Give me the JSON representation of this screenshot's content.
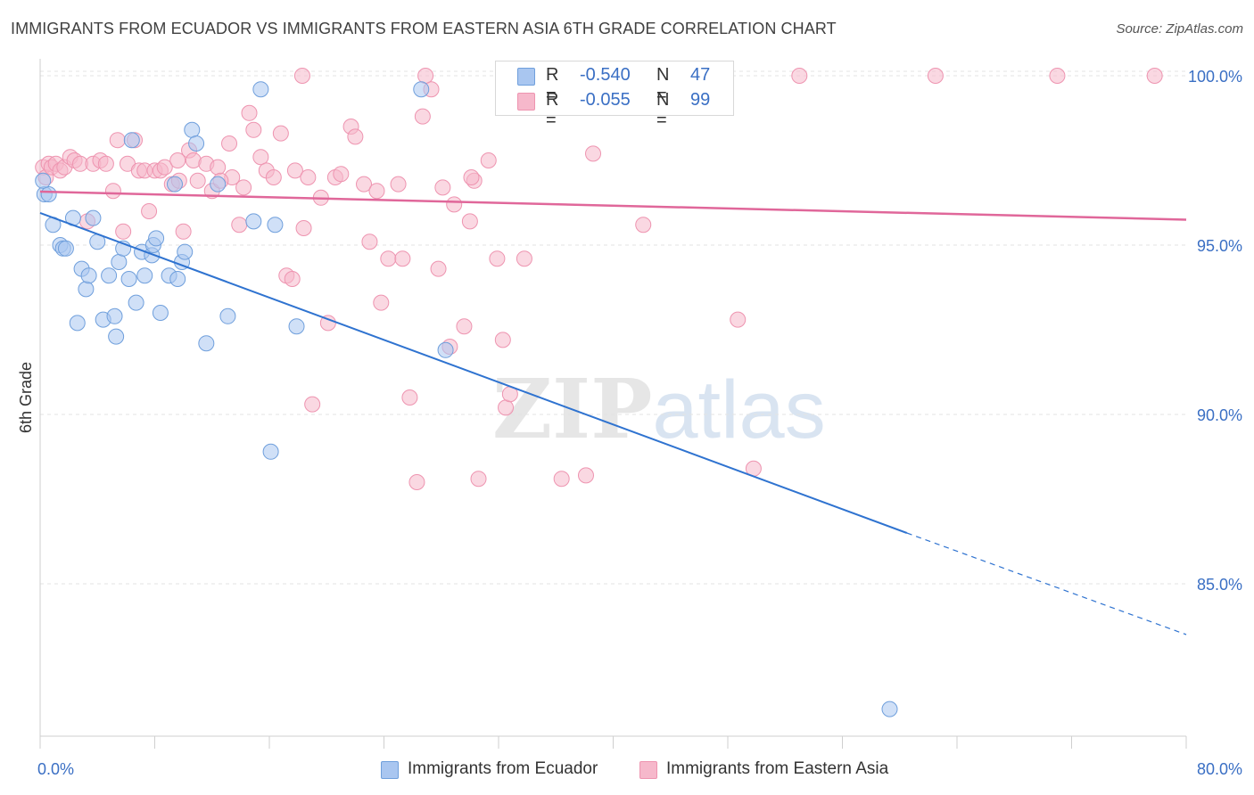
{
  "header": {
    "title": "IMMIGRANTS FROM ECUADOR VS IMMIGRANTS FROM EASTERN ASIA 6TH GRADE CORRELATION CHART",
    "source": "Source: ZipAtlas.com"
  },
  "watermark": {
    "zip": "ZIP",
    "atlas": "atlas"
  },
  "stats": [
    {
      "r_label": "R =",
      "r_value": "-0.540",
      "n_label": "N =",
      "n_value": "47",
      "color": "#a9c6f0"
    },
    {
      "r_label": "R =",
      "r_value": "-0.055",
      "n_label": "N =",
      "n_value": "99",
      "color": "#f6b8cb"
    }
  ],
  "legend": [
    {
      "label": "Immigrants from Ecuador",
      "color": "#a9c6f0"
    },
    {
      "label": "Immigrants from Eastern Asia",
      "color": "#f6b8cb"
    }
  ],
  "chart_data": {
    "type": "scatter",
    "title": "IMMIGRANTS FROM ECUADOR VS IMMIGRANTS FROM EASTERN ASIA 6TH GRADE CORRELATION CHART",
    "xlabel": "",
    "ylabel": "6th Grade",
    "xlim": [
      0,
      80
    ],
    "ylim": [
      80.5,
      100.5
    ],
    "x_tick_labels": [
      "0.0%",
      "80.0%"
    ],
    "y_ticks": [
      85,
      90,
      95,
      100
    ],
    "y_tick_labels": [
      "85.0%",
      "90.0%",
      "95.0%",
      "100.0%"
    ],
    "grid": true,
    "colors": {
      "ecuador_fill": "#a9c6f0",
      "ecuador_stroke": "#6f9fdc",
      "ecuador_line": "#2f73d0",
      "asia_fill": "#f6b8cb",
      "asia_stroke": "#ee94b0",
      "asia_line": "#e0679a"
    },
    "series": [
      {
        "name": "Immigrants from Ecuador",
        "points": [
          [
            0.3,
            96.5
          ],
          [
            0.6,
            96.5
          ],
          [
            0.9,
            95.6
          ],
          [
            1.4,
            95.0
          ],
          [
            1.6,
            94.9
          ],
          [
            1.8,
            94.9
          ],
          [
            2.3,
            95.8
          ],
          [
            2.6,
            92.7
          ],
          [
            2.9,
            94.3
          ],
          [
            3.2,
            93.7
          ],
          [
            3.4,
            94.1
          ],
          [
            3.7,
            95.8
          ],
          [
            4.0,
            95.1
          ],
          [
            4.4,
            92.8
          ],
          [
            4.8,
            94.1
          ],
          [
            5.2,
            92.9
          ],
          [
            5.3,
            92.3
          ],
          [
            5.5,
            94.5
          ],
          [
            5.8,
            94.9
          ],
          [
            6.2,
            94.0
          ],
          [
            6.4,
            98.1
          ],
          [
            6.7,
            93.3
          ],
          [
            7.1,
            94.8
          ],
          [
            7.3,
            94.1
          ],
          [
            7.8,
            94.7
          ],
          [
            7.9,
            95.0
          ],
          [
            8.1,
            95.2
          ],
          [
            8.4,
            93.0
          ],
          [
            9.0,
            94.1
          ],
          [
            9.4,
            96.8
          ],
          [
            9.6,
            94.0
          ],
          [
            9.9,
            94.5
          ],
          [
            10.1,
            94.8
          ],
          [
            10.6,
            98.4
          ],
          [
            10.9,
            98.0
          ],
          [
            11.6,
            92.1
          ],
          [
            12.4,
            96.8
          ],
          [
            13.1,
            92.9
          ],
          [
            14.9,
            95.7
          ],
          [
            15.4,
            99.6
          ],
          [
            16.1,
            88.9
          ],
          [
            16.4,
            95.6
          ],
          [
            17.9,
            92.6
          ],
          [
            26.6,
            99.6
          ],
          [
            28.3,
            91.9
          ],
          [
            59.3,
            81.3
          ],
          [
            0.2,
            96.9
          ]
        ],
        "trend": {
          "x": [
            0,
            60.5
          ],
          "y": [
            95.95,
            86.5
          ]
        },
        "trend_extension": {
          "x": [
            60.5,
            80
          ],
          "y": [
            86.5,
            83.5
          ]
        }
      },
      {
        "name": "Immigrants from Eastern Asia",
        "points": [
          [
            0.2,
            97.3
          ],
          [
            0.4,
            97.0
          ],
          [
            0.6,
            97.4
          ],
          [
            0.8,
            97.3
          ],
          [
            1.1,
            97.4
          ],
          [
            1.4,
            97.2
          ],
          [
            1.7,
            97.3
          ],
          [
            2.1,
            97.6
          ],
          [
            2.4,
            97.5
          ],
          [
            2.8,
            97.4
          ],
          [
            3.3,
            95.7
          ],
          [
            3.7,
            97.4
          ],
          [
            4.2,
            97.5
          ],
          [
            4.6,
            97.4
          ],
          [
            5.1,
            96.6
          ],
          [
            5.4,
            98.1
          ],
          [
            5.8,
            95.4
          ],
          [
            6.1,
            97.4
          ],
          [
            6.6,
            98.1
          ],
          [
            6.9,
            97.2
          ],
          [
            7.3,
            97.2
          ],
          [
            7.6,
            96.0
          ],
          [
            8.0,
            97.2
          ],
          [
            8.4,
            97.2
          ],
          [
            8.7,
            97.3
          ],
          [
            9.2,
            96.8
          ],
          [
            9.6,
            97.5
          ],
          [
            10.0,
            95.4
          ],
          [
            10.4,
            97.8
          ],
          [
            10.7,
            97.5
          ],
          [
            11.0,
            96.9
          ],
          [
            11.6,
            97.4
          ],
          [
            12.0,
            96.6
          ],
          [
            12.4,
            97.3
          ],
          [
            13.2,
            98.0
          ],
          [
            13.4,
            97.0
          ],
          [
            13.9,
            95.6
          ],
          [
            14.2,
            96.7
          ],
          [
            14.6,
            98.9
          ],
          [
            14.9,
            98.4
          ],
          [
            15.4,
            97.6
          ],
          [
            15.8,
            97.2
          ],
          [
            16.3,
            97.0
          ],
          [
            16.8,
            98.3
          ],
          [
            17.2,
            94.1
          ],
          [
            17.8,
            97.2
          ],
          [
            18.4,
            95.5
          ],
          [
            18.7,
            97.0
          ],
          [
            19.6,
            96.4
          ],
          [
            20.1,
            92.7
          ],
          [
            20.6,
            97.0
          ],
          [
            21.0,
            97.1
          ],
          [
            21.7,
            98.5
          ],
          [
            22.0,
            98.2
          ],
          [
            22.6,
            96.8
          ],
          [
            23.0,
            95.1
          ],
          [
            23.5,
            96.6
          ],
          [
            23.8,
            93.3
          ],
          [
            24.3,
            94.6
          ],
          [
            25.0,
            96.8
          ],
          [
            25.3,
            94.6
          ],
          [
            25.8,
            90.5
          ],
          [
            26.3,
            88.0
          ],
          [
            26.7,
            98.8
          ],
          [
            27.3,
            99.6
          ],
          [
            27.8,
            94.3
          ],
          [
            28.1,
            96.7
          ],
          [
            28.6,
            92.0
          ],
          [
            28.9,
            96.2
          ],
          [
            29.6,
            92.6
          ],
          [
            30.0,
            95.7
          ],
          [
            30.3,
            96.9
          ],
          [
            30.6,
            88.1
          ],
          [
            31.3,
            97.5
          ],
          [
            31.9,
            94.6
          ],
          [
            32.3,
            92.2
          ],
          [
            32.5,
            90.2
          ],
          [
            32.8,
            90.6
          ],
          [
            33.8,
            94.6
          ],
          [
            36.4,
            88.1
          ],
          [
            37.2,
            100.0
          ],
          [
            38.1,
            88.2
          ],
          [
            38.6,
            97.7
          ],
          [
            41.0,
            99.6
          ],
          [
            42.1,
            95.6
          ],
          [
            43.8,
            100.0
          ],
          [
            48.7,
            92.8
          ],
          [
            49.8,
            88.4
          ],
          [
            53.0,
            100.0
          ],
          [
            62.5,
            100.0
          ],
          [
            71.0,
            100.0
          ],
          [
            77.8,
            100.0
          ],
          [
            9.7,
            96.9
          ],
          [
            12.6,
            96.9
          ],
          [
            17.6,
            94.0
          ],
          [
            18.3,
            100.0
          ],
          [
            19.0,
            90.3
          ],
          [
            26.9,
            100.0
          ],
          [
            30.1,
            97.0
          ]
        ],
        "trend": {
          "x": [
            0,
            80
          ],
          "y": [
            96.58,
            95.75
          ]
        }
      }
    ]
  }
}
